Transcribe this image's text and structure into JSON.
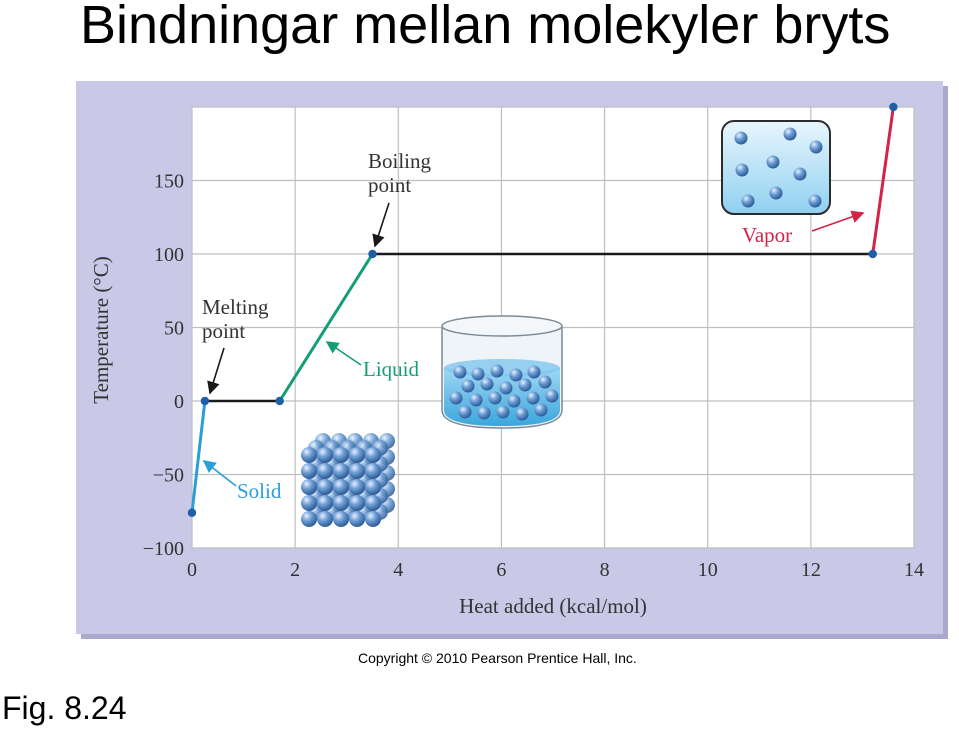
{
  "slide": {
    "title": "Bindningar mellan molekyler bryts",
    "figure_label": "Fig. 8.24",
    "copyright": "Copyright © 2010 Pearson Prentice Hall, Inc."
  },
  "colors": {
    "panel_bg": "#c9c8e6",
    "plot_bg": "#ffffff",
    "grid": "#bfbfbf",
    "solid": "#2a9fd6",
    "liquid": "#149e78",
    "vapor": "#d22447",
    "plateau": "#1a1a1a",
    "point": "#1f5fa6",
    "sphere": "#5b8fc9"
  },
  "chart_data": {
    "type": "line",
    "xlabel": "Heat added (kcal/mol)",
    "ylabel": "Temperature (°C)",
    "xlim": [
      0,
      14
    ],
    "ylim": [
      -100,
      200
    ],
    "x_ticks": [
      0,
      2,
      4,
      6,
      8,
      10,
      12,
      14
    ],
    "y_ticks": [
      -100,
      -50,
      0,
      50,
      100,
      150
    ],
    "x_tick_labels": [
      "0",
      "2",
      "4",
      "6",
      "8",
      "10",
      "12",
      "14"
    ],
    "y_tick_labels": [
      "−100",
      "−50",
      "0",
      "50",
      "100",
      "150"
    ],
    "grid": true,
    "segments": [
      {
        "name": "Solid",
        "color": "#2a9fd6",
        "points": [
          [
            0,
            -76
          ],
          [
            0.25,
            0
          ]
        ]
      },
      {
        "name": "",
        "color": "#1a1a1a",
        "points": [
          [
            0.25,
            0
          ],
          [
            1.7,
            0
          ]
        ]
      },
      {
        "name": "Liquid",
        "color": "#149e78",
        "points": [
          [
            1.7,
            0
          ],
          [
            3.5,
            100
          ]
        ]
      },
      {
        "name": "",
        "color": "#1a1a1a",
        "points": [
          [
            3.5,
            100
          ],
          [
            13.2,
            100
          ]
        ]
      },
      {
        "name": "Vapor",
        "color": "#d22447",
        "points": [
          [
            13.2,
            100
          ],
          [
            13.6,
            200
          ]
        ]
      }
    ],
    "points": [
      [
        0,
        -76
      ],
      [
        0.25,
        0
      ],
      [
        1.7,
        0
      ],
      [
        3.5,
        100
      ],
      [
        13.2,
        100
      ],
      [
        13.6,
        200
      ]
    ],
    "annotations": {
      "melting_point": [
        "Melting",
        "point"
      ],
      "boiling_point": [
        "Boiling",
        "point"
      ],
      "solid": "Solid",
      "liquid": "Liquid",
      "vapor": "Vapor"
    }
  }
}
